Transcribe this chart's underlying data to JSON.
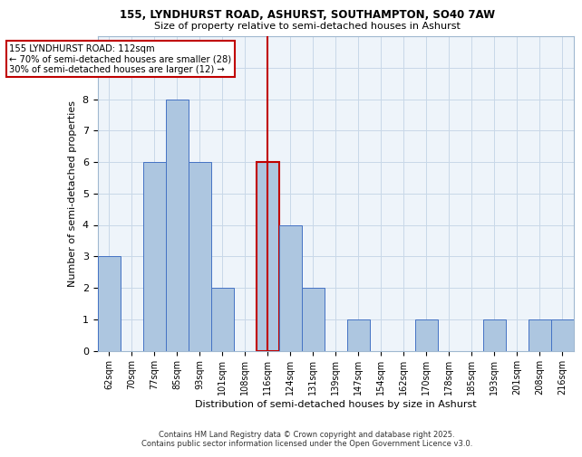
{
  "title1": "155, LYNDHURST ROAD, ASHURST, SOUTHAMPTON, SO40 7AW",
  "title2": "Size of property relative to semi-detached houses in Ashurst",
  "xlabel": "Distribution of semi-detached houses by size in Ashurst",
  "ylabel": "Number of semi-detached properties",
  "categories": [
    "62sqm",
    "70sqm",
    "77sqm",
    "85sqm",
    "93sqm",
    "101sqm",
    "108sqm",
    "116sqm",
    "124sqm",
    "131sqm",
    "139sqm",
    "147sqm",
    "154sqm",
    "162sqm",
    "170sqm",
    "178sqm",
    "185sqm",
    "193sqm",
    "201sqm",
    "208sqm",
    "216sqm"
  ],
  "values": [
    3,
    0,
    6,
    8,
    6,
    2,
    0,
    6,
    4,
    2,
    0,
    1,
    0,
    0,
    1,
    0,
    0,
    1,
    0,
    1,
    1
  ],
  "bar_color": "#adc6e0",
  "bar_edge_color": "#4472c4",
  "highlight_bar_index": 7,
  "highlight_bar_edge_color": "#c00000",
  "vline_x": 7,
  "vline_color": "#c00000",
  "annotation_title": "155 LYNDHURST ROAD: 112sqm",
  "annotation_line1": "← 70% of semi-detached houses are smaller (28)",
  "annotation_line2": "30% of semi-detached houses are larger (12) →",
  "annotation_box_color": "#c00000",
  "ylim": [
    0,
    10
  ],
  "yticks": [
    0,
    1,
    2,
    3,
    4,
    5,
    6,
    7,
    8,
    9,
    10
  ],
  "grid_color": "#c8d8e8",
  "bg_color": "#eef4fa",
  "footer1": "Contains HM Land Registry data © Crown copyright and database right 2025.",
  "footer2": "Contains public sector information licensed under the Open Government Licence v3.0."
}
